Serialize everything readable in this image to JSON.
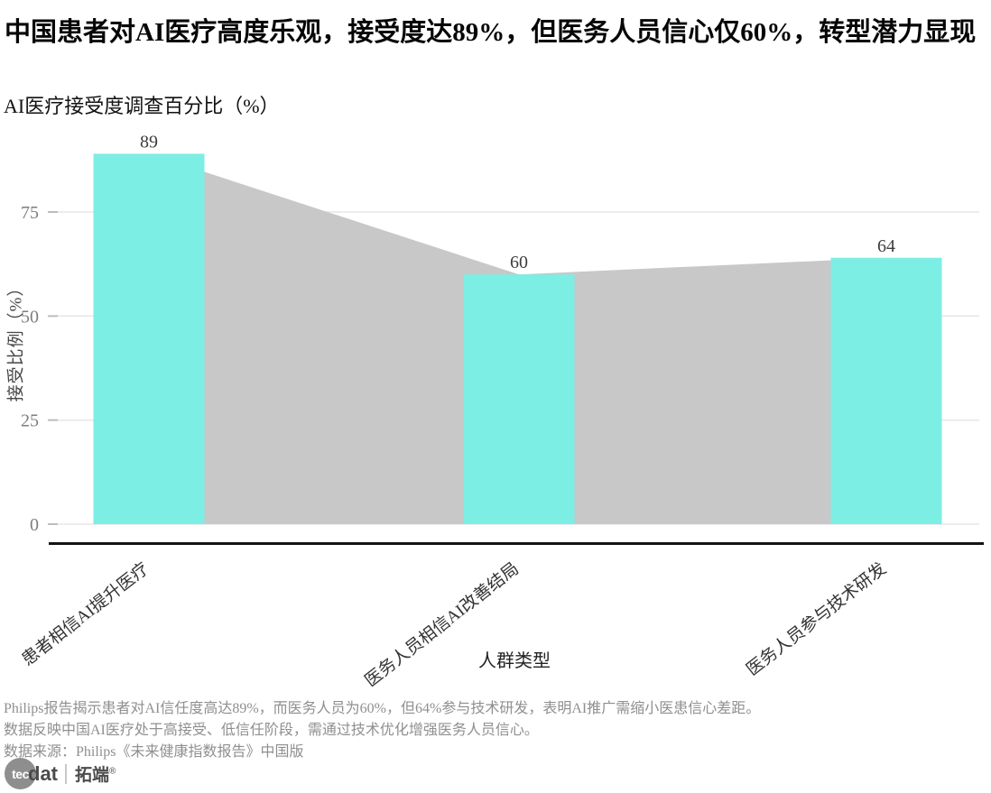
{
  "header": {
    "title": "中国患者对AI医疗高度乐观，接受度达89%，但医务人员信心仅60%，转型潜力显现",
    "subtitle": "AI医疗接受度调查百分比（%）"
  },
  "chart_data": {
    "type": "bar",
    "categories": [
      "患者相信AI提升医疗",
      "医务人员相信AI改善结局",
      "医务人员参与技术研发"
    ],
    "values": [
      89,
      60,
      64
    ],
    "value_labels": [
      "89",
      "60",
      "64"
    ],
    "title": "中国患者对AI医疗高度乐观，接受度达89%，但医务人员信心仅60%，转型潜力显现",
    "subtitle": "AI医疗接受度调查百分比（%）",
    "xlabel": "人群类型",
    "ylabel": "接受比例（%）",
    "yticks": [
      0,
      25,
      50,
      75
    ],
    "ylim": [
      0,
      95
    ],
    "grid": true,
    "legend": "none",
    "bar_color": "#7ceee4",
    "bridge_color": "#c8c8c8",
    "gridline_color": "#e7e7e7",
    "axis_line_color": "#141414",
    "tick_label_color": "#7d7d7d",
    "bridge_note": "gray area connects bar tops at bar centers, drawn beneath bars"
  },
  "footer": {
    "lines": [
      "Philips报告揭示患者对AI信任度高达89%，而医务人员为60%，但64%参与技术研发，表明AI推广需缩小医患信心差距。",
      "数据反映中国AI医疗处于高接受、低信任阶段，需通过技术优化增强医务人员信心。",
      "数据来源：Philips《未来健康指数报告》中国版"
    ]
  },
  "logo": {
    "tec": "tec",
    "dat": "dat",
    "cn": "拓端",
    "reg": "®"
  }
}
